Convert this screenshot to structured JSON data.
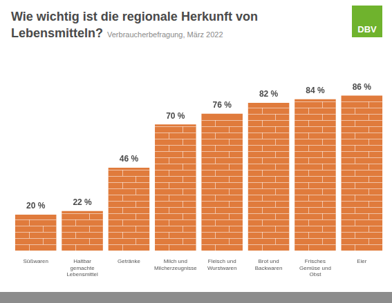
{
  "header": {
    "logo": "DBV"
  },
  "chart_data": {
    "type": "bar",
    "title": "Wie wichtig ist die regionale Herkunft von Lebensmitteln?",
    "subtitle": "Verbraucherbefragung, März 2022",
    "categories": [
      "Süßwaren",
      "Haltbar gemachte Lebensmittel",
      "Getränke",
      "Milch und Milcherzeugnisse",
      "Fleisch und Wurstwaren",
      "Brot und Backwaren",
      "Frisches Gemüse und Obst",
      "Eier"
    ],
    "values": [
      20,
      22,
      46,
      70,
      76,
      82,
      84,
      86
    ],
    "value_labels": [
      "20 %",
      "22 %",
      "46 %",
      "70 %",
      "76 %",
      "82 %",
      "84 %",
      "86 %"
    ],
    "color": "#e07b3c",
    "ylim": [
      0,
      100
    ],
    "yticks": [
      0,
      100
    ],
    "grid": false,
    "data_labels": true,
    "tick_labels": "x"
  }
}
